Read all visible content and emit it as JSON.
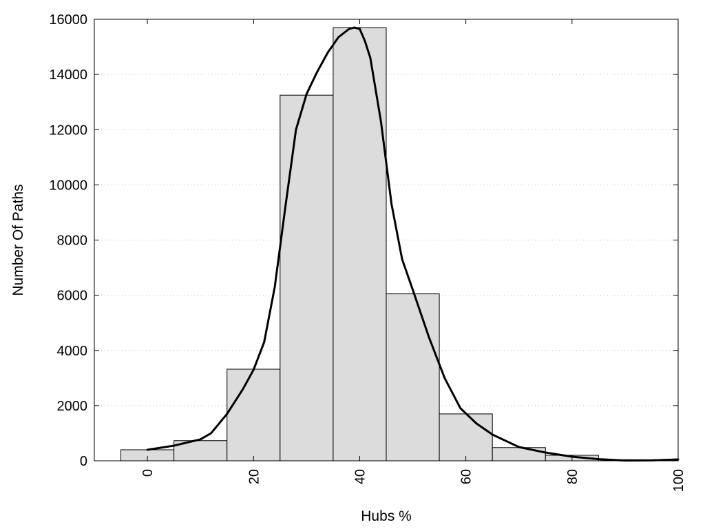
{
  "chart_data": {
    "type": "bar",
    "xlabel": "Hubs %",
    "ylabel": "Number Of Paths",
    "xlim": [
      -10,
      100
    ],
    "ylim": [
      0,
      16000
    ],
    "grid": true,
    "x_ticks": [
      0,
      20,
      40,
      60,
      80,
      100
    ],
    "y_ticks": [
      0,
      2000,
      4000,
      6000,
      8000,
      10000,
      12000,
      14000,
      16000
    ],
    "bin_width": 10,
    "bins": [
      {
        "center": 0,
        "value": 400
      },
      {
        "center": 10,
        "value": 730
      },
      {
        "center": 20,
        "value": 3320
      },
      {
        "center": 30,
        "value": 13250
      },
      {
        "center": 40,
        "value": 15700
      },
      {
        "center": 50,
        "value": 6050
      },
      {
        "center": 60,
        "value": 1700
      },
      {
        "center": 70,
        "value": 480
      },
      {
        "center": 80,
        "value": 200
      },
      {
        "center": 90,
        "value": 40
      }
    ],
    "series": [
      {
        "type": "line",
        "x": [
          0,
          5,
          10,
          12,
          15,
          18,
          20,
          22,
          24,
          26,
          28,
          30,
          32,
          34,
          36,
          38,
          39,
          40,
          41,
          42,
          44,
          46,
          48,
          50,
          53,
          56,
          59,
          62,
          65,
          70,
          75,
          80,
          85,
          90,
          95,
          100
        ],
        "y": [
          400,
          550,
          780,
          1000,
          1700,
          2600,
          3300,
          4300,
          6300,
          9200,
          12000,
          13300,
          14100,
          14800,
          15350,
          15650,
          15700,
          15650,
          15200,
          14600,
          12300,
          9300,
          7300,
          6200,
          4500,
          3000,
          1900,
          1350,
          950,
          500,
          300,
          150,
          60,
          10,
          15,
          50
        ]
      }
    ]
  }
}
